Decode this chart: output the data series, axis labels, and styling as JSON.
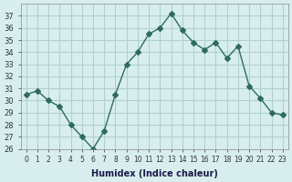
{
  "x": [
    0,
    1,
    2,
    3,
    4,
    5,
    6,
    7,
    8,
    9,
    10,
    11,
    12,
    13,
    14,
    15,
    16,
    17,
    18,
    19,
    20,
    21,
    22,
    23
  ],
  "y": [
    30.5,
    30.8,
    30.0,
    29.5,
    28.0,
    27.0,
    26.0,
    27.5,
    30.5,
    33.0,
    34.0,
    35.5,
    36.0,
    37.2,
    35.8,
    34.8,
    34.2,
    34.8,
    33.5,
    34.5,
    31.2,
    30.2,
    29.0,
    28.8
  ],
  "line_color": "#2e6b5e",
  "marker": "D",
  "marker_size": 3,
  "bg_color": "#d8eeee",
  "grid_color": "#b0d0d0",
  "xlabel": "Humidex (Indice chaleur)",
  "ylim": [
    26,
    38
  ],
  "xlim": [
    -0.5,
    23.5
  ],
  "yticks": [
    26,
    27,
    28,
    29,
    30,
    31,
    32,
    33,
    34,
    35,
    36,
    37
  ],
  "xticks": [
    0,
    1,
    2,
    3,
    4,
    5,
    6,
    7,
    8,
    9,
    10,
    11,
    12,
    13,
    14,
    15,
    16,
    17,
    18,
    19,
    20,
    21,
    22,
    23
  ],
  "xtick_labels": [
    "0",
    "1",
    "2",
    "3",
    "4",
    "5",
    "6",
    "7",
    "8",
    "9",
    "10",
    "11",
    "12",
    "13",
    "14",
    "15",
    "16",
    "17",
    "18",
    "19",
    "20",
    "21",
    "22",
    "23"
  ]
}
